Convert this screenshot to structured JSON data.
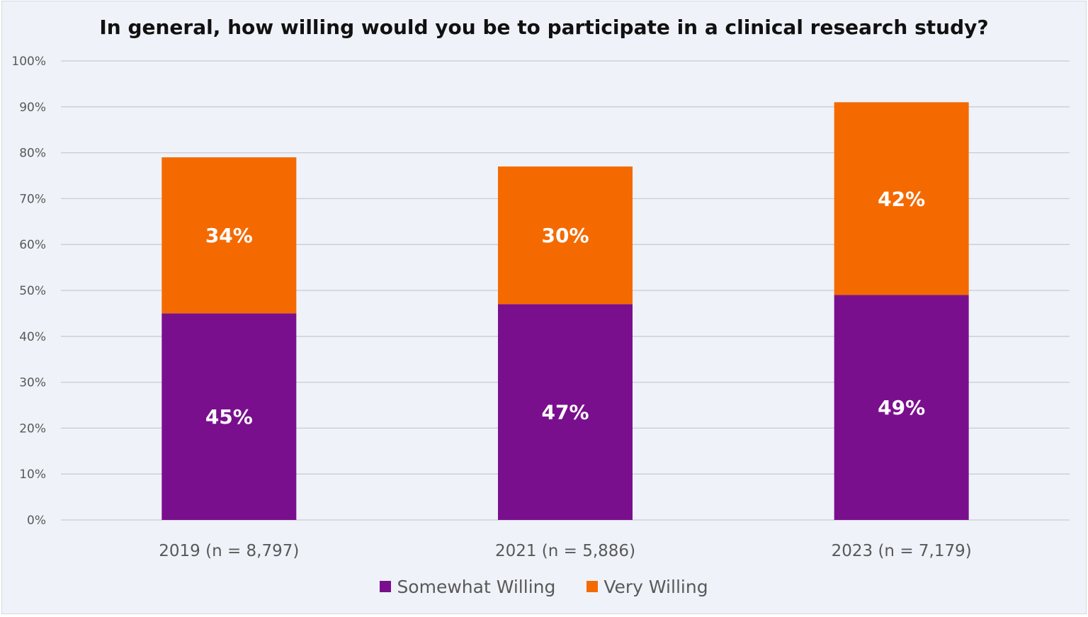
{
  "chart_data": {
    "type": "bar",
    "stacked": true,
    "title": "In general, how willing would you be to participate in a clinical research study?",
    "categories": [
      "2019 (n = 8,797)",
      "2021 (n = 5,886)",
      "2023 (n = 7,179)"
    ],
    "series": [
      {
        "name": "Somewhat Willing",
        "values": [
          45,
          47,
          49
        ],
        "labels": [
          "45%",
          "47%",
          "49%"
        ],
        "color": "#7a0f8e"
      },
      {
        "name": "Very Willing",
        "values": [
          34,
          30,
          42
        ],
        "labels": [
          "34%",
          "30%",
          "42%"
        ],
        "color": "#f46a00"
      }
    ],
    "ylim": [
      0,
      100
    ],
    "yticks": [
      "0%",
      "10%",
      "20%",
      "30%",
      "40%",
      "50%",
      "60%",
      "70%",
      "80%",
      "90%",
      "100%"
    ],
    "grid": true,
    "legend": "bottom"
  }
}
